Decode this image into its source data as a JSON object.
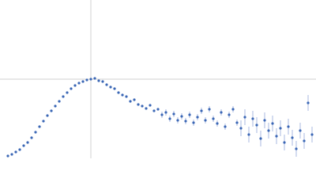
{
  "chart_data": {
    "type": "scatter",
    "color": "#3a66b5",
    "error_color": "#a8b9e0",
    "xlim": [
      0,
      40
    ],
    "ylim": [
      0,
      2
    ],
    "xticks": [
      11.5
    ],
    "yticks": [
      1
    ],
    "grid": true,
    "x": [
      1,
      1.5,
      2,
      2.5,
      3,
      3.5,
      4,
      4.5,
      5,
      5.5,
      6,
      6.5,
      7,
      7.5,
      8,
      8.5,
      9,
      9.5,
      10,
      10.5,
      11,
      11.5,
      12,
      12.5,
      13,
      13.5,
      14,
      14.5,
      15,
      15.5,
      16,
      16.5,
      17,
      17.5,
      18,
      18.5,
      19,
      19.5,
      20,
      20.5,
      21,
      21.5,
      22,
      22.5,
      23,
      23.5,
      24,
      24.5,
      25,
      25.5,
      26,
      26.5,
      27,
      27.5,
      28,
      28.5,
      29,
      29.5,
      30,
      30.5,
      31,
      31.5,
      32,
      32.5,
      33,
      33.5,
      34,
      34.5,
      35,
      35.5,
      36,
      36.5,
      37,
      37.5,
      38,
      38.5,
      39,
      39.5
    ],
    "values": [
      0.03,
      0.05,
      0.08,
      0.11,
      0.16,
      0.2,
      0.26,
      0.33,
      0.4,
      0.47,
      0.54,
      0.6,
      0.66,
      0.72,
      0.78,
      0.83,
      0.88,
      0.92,
      0.95,
      0.97,
      0.99,
      1.0,
      1.01,
      0.98,
      0.97,
      0.93,
      0.9,
      0.88,
      0.83,
      0.8,
      0.78,
      0.72,
      0.74,
      0.68,
      0.66,
      0.63,
      0.67,
      0.6,
      0.62,
      0.55,
      0.58,
      0.5,
      0.56,
      0.48,
      0.53,
      0.47,
      0.55,
      0.45,
      0.52,
      0.6,
      0.48,
      0.62,
      0.5,
      0.44,
      0.58,
      0.4,
      0.55,
      0.62,
      0.45,
      0.38,
      0.52,
      0.3,
      0.5,
      0.42,
      0.25,
      0.48,
      0.35,
      0.44,
      0.28,
      0.38,
      0.2,
      0.4,
      0.26,
      0.12,
      0.35,
      0.22,
      0.7,
      0.3
    ],
    "errors": [
      0.005,
      0.005,
      0.005,
      0.005,
      0.005,
      0.005,
      0.005,
      0.005,
      0.005,
      0.005,
      0.005,
      0.005,
      0.005,
      0.005,
      0.005,
      0.005,
      0.005,
      0.005,
      0.005,
      0.005,
      0.01,
      0.01,
      0.01,
      0.01,
      0.01,
      0.01,
      0.01,
      0.01,
      0.01,
      0.01,
      0.01,
      0.01,
      0.01,
      0.01,
      0.01,
      0.01,
      0.01,
      0.01,
      0.01,
      0.04,
      0.04,
      0.04,
      0.04,
      0.04,
      0.04,
      0.04,
      0.04,
      0.04,
      0.04,
      0.04,
      0.04,
      0.04,
      0.04,
      0.04,
      0.04,
      0.04,
      0.04,
      0.04,
      0.04,
      0.1,
      0.1,
      0.1,
      0.1,
      0.1,
      0.1,
      0.1,
      0.1,
      0.1,
      0.1,
      0.1,
      0.1,
      0.1,
      0.1,
      0.1,
      0.1,
      0.1,
      0.1,
      0.1
    ]
  }
}
